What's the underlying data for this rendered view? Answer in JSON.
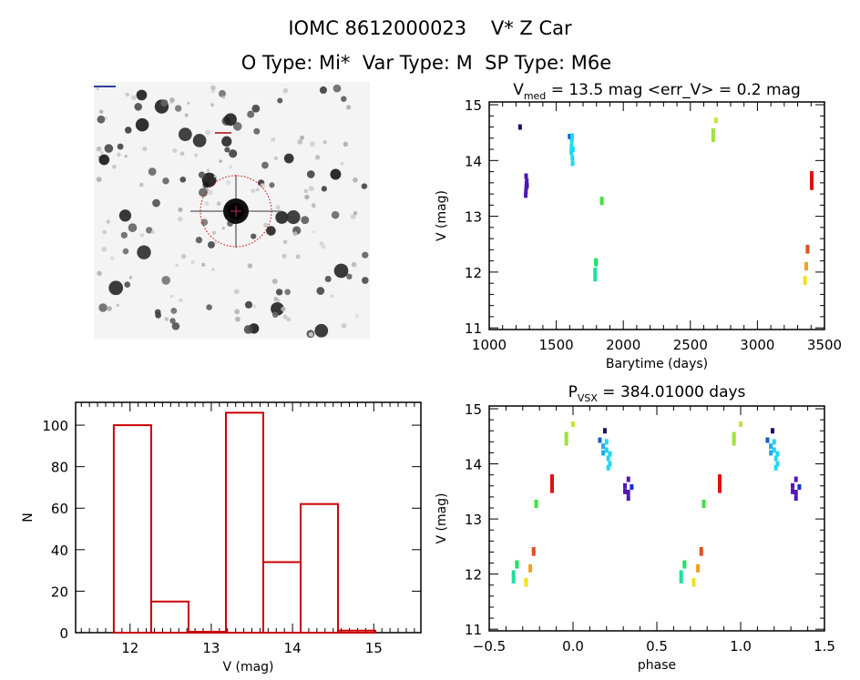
{
  "header": {
    "title": "IOMC 8612000023    V* Z Car",
    "subtitle": "O Type: Mi*  Var Type: M  SP Type: M6e"
  },
  "finder_image": {
    "description_icon": "star-field-image",
    "marker_color": "#cc0000"
  },
  "chart_data": [
    {
      "type": "scatter",
      "title_parts": {
        "main": "V",
        "sub": "med",
        "rest": " = 13.5 mag <err_V> = 0.2 mag"
      },
      "xlabel": "Barytime (days)",
      "ylabel": "V (mag)",
      "xlim": [
        1000,
        3500
      ],
      "ylim": [
        15.05,
        10.97
      ],
      "xticks": [
        "1000",
        "1500",
        "2000",
        "2500",
        "3000",
        "3500"
      ],
      "yticks": [
        "11",
        "12",
        "13",
        "14",
        "15"
      ],
      "points": [
        {
          "x": 1230,
          "y": 14.6,
          "color": "#201060"
        },
        {
          "x": 1272,
          "y": 13.38,
          "color": "#5018b0"
        },
        {
          "x": 1274,
          "y": 13.45,
          "color": "#5018b0"
        },
        {
          "x": 1276,
          "y": 13.52,
          "color": "#5018b0"
        },
        {
          "x": 1278,
          "y": 13.58,
          "color": "#5018b0"
        },
        {
          "x": 1280,
          "y": 13.63,
          "color": "#5018b0"
        },
        {
          "x": 1282,
          "y": 13.55,
          "color": "#5018b0"
        },
        {
          "x": 1275,
          "y": 13.72,
          "color": "#5018b0"
        },
        {
          "x": 1600,
          "y": 14.43,
          "color": "#1060d0"
        },
        {
          "x": 1612,
          "y": 14.15,
          "color": "#20d8f0"
        },
        {
          "x": 1614,
          "y": 14.25,
          "color": "#20d8f0"
        },
        {
          "x": 1616,
          "y": 14.35,
          "color": "#20d8f0"
        },
        {
          "x": 1618,
          "y": 14.44,
          "color": "#20d8f0"
        },
        {
          "x": 1620,
          "y": 14.05,
          "color": "#20d8f0"
        },
        {
          "x": 1622,
          "y": 13.95,
          "color": "#20d8f0"
        },
        {
          "x": 1624,
          "y": 14.2,
          "color": "#20d8f0"
        },
        {
          "x": 1790,
          "y": 11.88,
          "color": "#20e0a0"
        },
        {
          "x": 1790,
          "y": 11.95,
          "color": "#20e0a0"
        },
        {
          "x": 1790,
          "y": 12.03,
          "color": "#20e0a0"
        },
        {
          "x": 1796,
          "y": 12.15,
          "color": "#20e060"
        },
        {
          "x": 1796,
          "y": 12.2,
          "color": "#20e060"
        },
        {
          "x": 1840,
          "y": 13.25,
          "color": "#40e040"
        },
        {
          "x": 1840,
          "y": 13.3,
          "color": "#40e040"
        },
        {
          "x": 2670,
          "y": 14.38,
          "color": "#a0e040"
        },
        {
          "x": 2670,
          "y": 14.45,
          "color": "#a0e040"
        },
        {
          "x": 2670,
          "y": 14.53,
          "color": "#a0e040"
        },
        {
          "x": 2690,
          "y": 14.72,
          "color": "#c8e040"
        },
        {
          "x": 3355,
          "y": 11.82,
          "color": "#f0e020"
        },
        {
          "x": 3355,
          "y": 11.88,
          "color": "#f0e020"
        },
        {
          "x": 3364,
          "y": 12.08,
          "color": "#f0a020"
        },
        {
          "x": 3364,
          "y": 12.13,
          "color": "#f0a020"
        },
        {
          "x": 3374,
          "y": 12.38,
          "color": "#e05020"
        },
        {
          "x": 3374,
          "y": 12.44,
          "color": "#e05020"
        },
        {
          "x": 3405,
          "y": 13.52,
          "color": "#e01010"
        },
        {
          "x": 3405,
          "y": 13.6,
          "color": "#e01010"
        },
        {
          "x": 3405,
          "y": 13.68,
          "color": "#e01010"
        },
        {
          "x": 3405,
          "y": 13.76,
          "color": "#e01010"
        }
      ]
    },
    {
      "type": "scatter",
      "title_parts": {
        "main": "P",
        "sub": "VSX",
        "rest": " = 384.01000 days"
      },
      "xlabel": "phase",
      "ylabel": "V (mag)",
      "xlim": [
        -0.5,
        1.5
      ],
      "ylim": [
        15.05,
        10.97
      ],
      "xticks": [
        "−0.5",
        "0.0",
        "0.5",
        "1.0",
        "1.5"
      ],
      "yticks": [
        "11",
        "12",
        "13",
        "14",
        "15"
      ],
      "points": [
        {
          "x": 0.19,
          "y": 14.6,
          "color": "#201060"
        },
        {
          "x": 0.31,
          "y": 13.5,
          "color": "#5018b0"
        },
        {
          "x": 0.31,
          "y": 13.6,
          "color": "#5018b0"
        },
        {
          "x": 0.33,
          "y": 13.38,
          "color": "#5018b0"
        },
        {
          "x": 0.33,
          "y": 13.48,
          "color": "#5018b0"
        },
        {
          "x": 0.33,
          "y": 13.72,
          "color": "#5018b0"
        },
        {
          "x": 0.35,
          "y": 13.58,
          "color": "#1030d0"
        },
        {
          "x": 0.16,
          "y": 14.43,
          "color": "#1060d0"
        },
        {
          "x": 0.18,
          "y": 14.2,
          "color": "#20a8f0"
        },
        {
          "x": 0.18,
          "y": 14.32,
          "color": "#20a8f0"
        },
        {
          "x": 0.2,
          "y": 14.25,
          "color": "#20d8f0"
        },
        {
          "x": 0.2,
          "y": 14.4,
          "color": "#20d8f0"
        },
        {
          "x": 0.21,
          "y": 14.1,
          "color": "#20d8f0"
        },
        {
          "x": 0.22,
          "y": 14.0,
          "color": "#20d8f0"
        },
        {
          "x": 0.22,
          "y": 14.18,
          "color": "#20d8f0"
        },
        {
          "x": 0.21,
          "y": 13.93,
          "color": "#20d8f0"
        },
        {
          "x": 0.645,
          "y": 11.88,
          "color": "#20e0a0"
        },
        {
          "x": 0.645,
          "y": 11.95,
          "color": "#20e0a0"
        },
        {
          "x": 0.645,
          "y": 12.02,
          "color": "#20e0a0"
        },
        {
          "x": 0.665,
          "y": 12.15,
          "color": "#20e060"
        },
        {
          "x": 0.665,
          "y": 12.2,
          "color": "#20e060"
        },
        {
          "x": 0.78,
          "y": 13.25,
          "color": "#40e040"
        },
        {
          "x": 0.78,
          "y": 13.3,
          "color": "#40e040"
        },
        {
          "x": 0.96,
          "y": 14.38,
          "color": "#a0e040"
        },
        {
          "x": 0.96,
          "y": 14.45,
          "color": "#a0e040"
        },
        {
          "x": 0.96,
          "y": 14.53,
          "color": "#a0e040"
        },
        {
          "x": 1.0,
          "y": 14.72,
          "color": "#c8e040"
        },
        {
          "x": 0.72,
          "y": 11.82,
          "color": "#f0e020"
        },
        {
          "x": 0.72,
          "y": 11.88,
          "color": "#f0e020"
        },
        {
          "x": 0.745,
          "y": 12.08,
          "color": "#f0a020"
        },
        {
          "x": 0.745,
          "y": 12.13,
          "color": "#f0a020"
        },
        {
          "x": 0.765,
          "y": 12.38,
          "color": "#e05020"
        },
        {
          "x": 0.765,
          "y": 12.44,
          "color": "#e05020"
        },
        {
          "x": 0.875,
          "y": 13.52,
          "color": "#e01010"
        },
        {
          "x": 0.875,
          "y": 13.6,
          "color": "#e01010"
        },
        {
          "x": 0.875,
          "y": 13.68,
          "color": "#e01010"
        },
        {
          "x": 0.875,
          "y": 13.76,
          "color": "#e01010"
        }
      ]
    },
    {
      "type": "bar",
      "subtype": "histogram",
      "xlabel": "V (mag)",
      "ylabel": "N",
      "xlim": [
        11.33,
        15.58
      ],
      "ylim": [
        0,
        111
      ],
      "xticks": [
        "12",
        "13",
        "14",
        "15"
      ],
      "yticks": [
        "0",
        "20",
        "40",
        "60",
        "80",
        "100"
      ],
      "bin_edges": [
        11.8,
        12.26,
        12.72,
        13.18,
        13.64,
        14.1,
        14.56,
        15.02
      ],
      "values": [
        100,
        15,
        0,
        106,
        34,
        62,
        1
      ],
      "color": "#cc0000"
    }
  ]
}
